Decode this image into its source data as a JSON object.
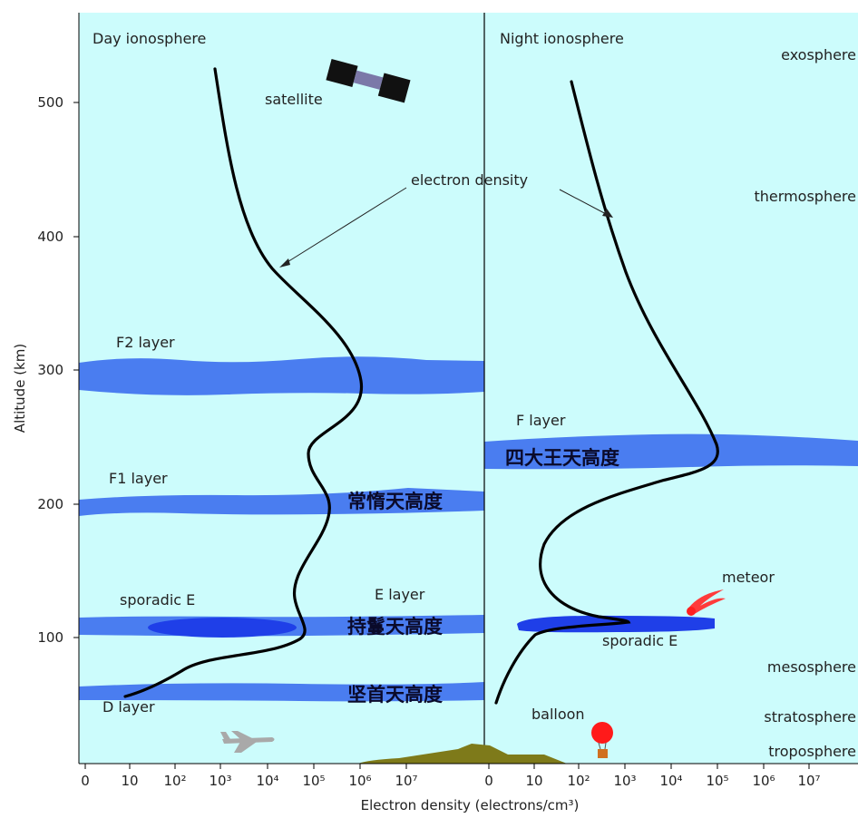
{
  "panels": {
    "day_title": "Day ionosphere",
    "night_title": "Night ionosphere"
  },
  "atmosphere": [
    "exosphere",
    "thermosphere",
    "mesosphere",
    "stratosphere",
    "troposphere"
  ],
  "layers": {
    "f2": "F2 layer",
    "f1": "F1 layer",
    "sporadic_day": "sporadic E",
    "e": "E layer",
    "d": "D layer",
    "f_night": "F layer",
    "sporadic_night": "sporadic E"
  },
  "chinese_labels": {
    "f_night": "四大王天高度",
    "f1": "常惰天高度",
    "e": "持鬘天高度",
    "d": "坚首天高度"
  },
  "objects": {
    "satellite": "satellite",
    "meteor": "meteor",
    "balloon": "balloon"
  },
  "annotation": "electron density",
  "y_axis": {
    "label": "Altitude (km)",
    "ticks": [
      "100",
      "200",
      "300",
      "400",
      "500"
    ]
  },
  "x_axis": {
    "label": "Electron density (electrons/cm³)",
    "ticks_day": [
      "0",
      "10",
      "10²",
      "10³",
      "10⁴",
      "10⁵",
      "10⁶",
      "10⁷"
    ],
    "ticks_night": [
      "0",
      "10",
      "10²",
      "10³",
      "10⁴",
      "10⁵",
      "10⁶",
      "10⁷"
    ]
  },
  "colors": {
    "sky": "#ccfcfc",
    "layer_band": "#4a7df0",
    "sporadic": "#1f3fe8",
    "curve": "#000000",
    "ground": "#7e7a1a"
  },
  "icons": [
    "satellite-icon",
    "airplane-icon",
    "meteor-icon",
    "balloon-icon"
  ]
}
